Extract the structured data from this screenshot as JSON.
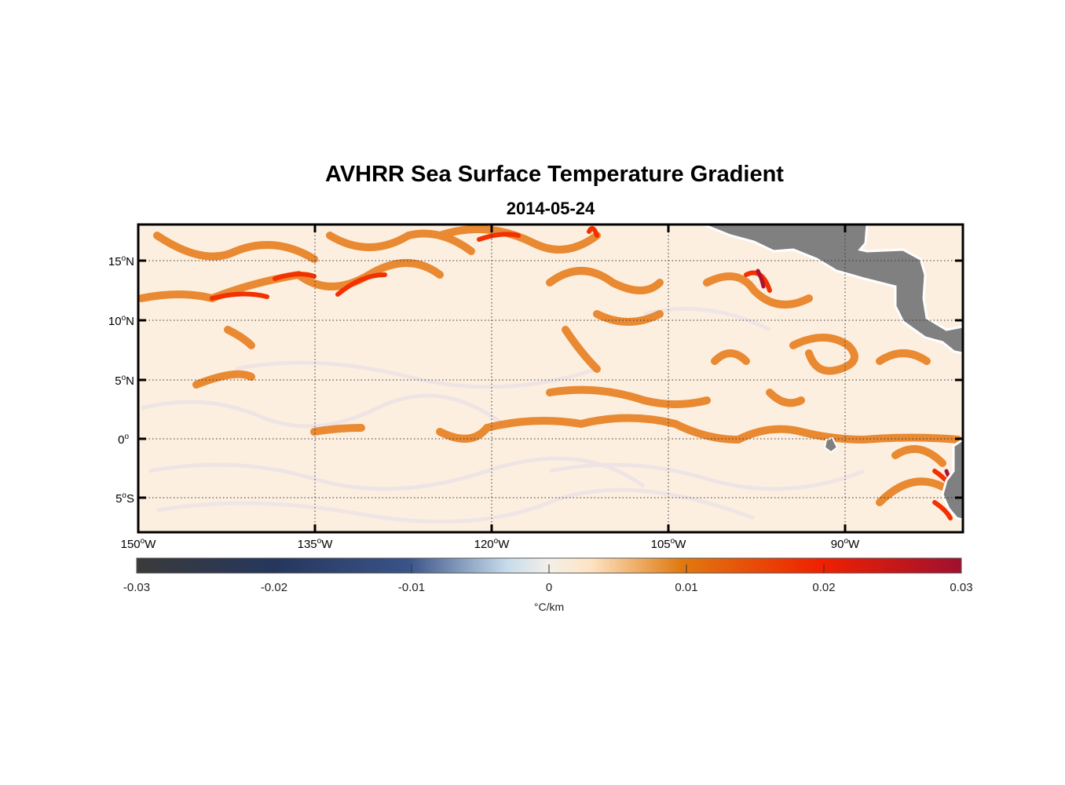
{
  "title": "AVHRR Sea Surface Temperature Gradient",
  "subtitle": "2014-05-24",
  "map": {
    "lon_range": [
      -150,
      -80
    ],
    "lat_range": [
      -8,
      18
    ],
    "land_color": "#808080",
    "lat_ticks": [
      {
        "value": 15,
        "deg": "15",
        "hemi": "N"
      },
      {
        "value": 10,
        "deg": "10",
        "hemi": "N"
      },
      {
        "value": 5,
        "deg": "5",
        "hemi": "N"
      },
      {
        "value": 0,
        "deg": "0",
        "hemi": ""
      },
      {
        "value": -5,
        "deg": "5",
        "hemi": "S"
      }
    ],
    "lon_ticks": [
      {
        "value": -150,
        "deg": "150",
        "hemi": "W"
      },
      {
        "value": -135,
        "deg": "135",
        "hemi": "W"
      },
      {
        "value": -120,
        "deg": "120",
        "hemi": "W"
      },
      {
        "value": -105,
        "deg": "105",
        "hemi": "W"
      },
      {
        "value": -90,
        "deg": "90",
        "hemi": "W"
      }
    ]
  },
  "colorbar": {
    "range": [
      -0.03,
      0.03
    ],
    "ticks": [
      "-0.03",
      "-0.02",
      "-0.01",
      "0",
      "0.01",
      "0.02",
      "0.03"
    ],
    "units": "°C/km",
    "colors": [
      "#3a3a3a",
      "#25375e",
      "#3a5488",
      "#c8dceb",
      "#fdf0dc",
      "#e07a10",
      "#f02000",
      "#a01030"
    ]
  }
}
